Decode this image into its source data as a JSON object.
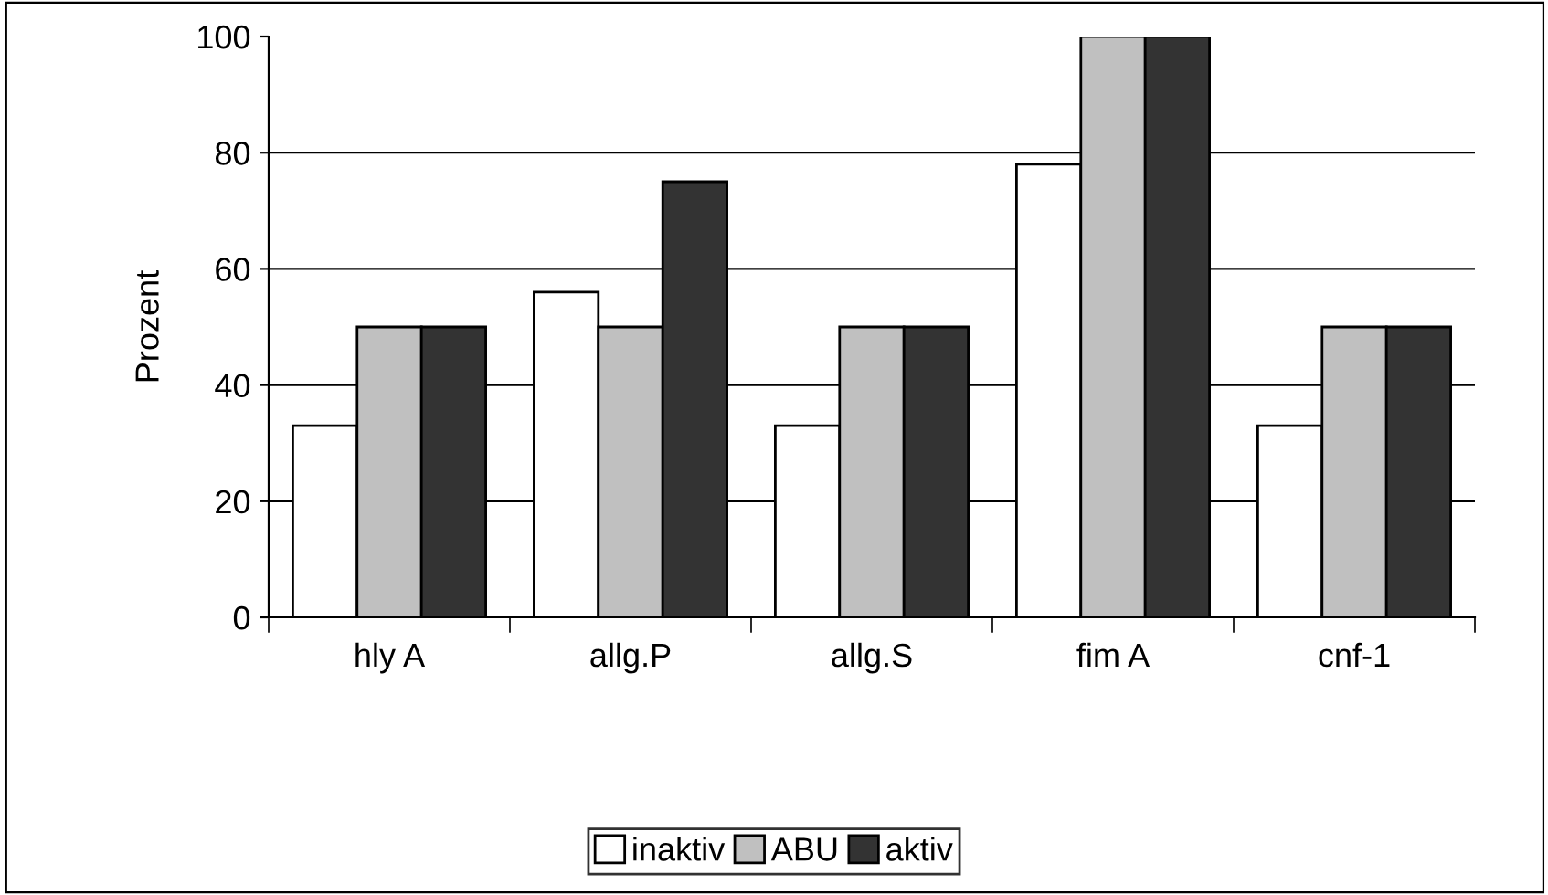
{
  "chart_data": {
    "type": "bar",
    "ylabel": "Prozent",
    "categories": [
      "hly A",
      "allg.P",
      "allg.S",
      "fim A",
      "cnf-1"
    ],
    "series": [
      {
        "name": "inaktiv",
        "color": "#ffffff",
        "values": [
          33,
          56,
          33,
          78,
          33
        ]
      },
      {
        "name": "ABU",
        "color": "#c0c0c0",
        "values": [
          50,
          50,
          50,
          100,
          50
        ]
      },
      {
        "name": "aktiv",
        "color": "#333333",
        "values": [
          50,
          75,
          50,
          100,
          50
        ]
      }
    ],
    "ylim": [
      0,
      100
    ],
    "yticks": [
      0,
      20,
      40,
      60,
      80,
      100
    ],
    "grid": "y",
    "legend": "bottom"
  }
}
